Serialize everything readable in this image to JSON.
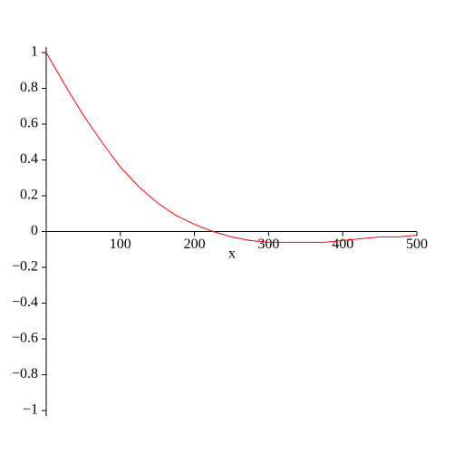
{
  "chart_data": {
    "type": "line",
    "x_label": "x",
    "x": [
      0,
      25,
      50,
      75,
      100,
      125,
      150,
      175,
      200,
      225,
      250,
      275,
      300,
      325,
      350,
      375,
      400,
      425,
      450,
      475,
      500
    ],
    "series": [
      {
        "color": "#ff0000",
        "values": [
          1,
          0.82,
          0.65,
          0.5,
          0.36,
          0.25,
          0.16,
          0.09,
          0.04,
          0,
          -0.03,
          -0.05,
          -0.06,
          -0.06,
          -0.06,
          -0.06,
          -0.05,
          -0.04,
          -0.03,
          -0.03,
          -0.02
        ]
      }
    ],
    "xlim": [
      0,
      500
    ],
    "xticks": [
      100,
      200,
      300,
      400,
      500
    ],
    "ylim": [
      -1,
      1
    ],
    "yticks": [
      {
        "value": -1,
        "label": "−1"
      },
      {
        "value": -0.8,
        "label": "−0.8"
      },
      {
        "value": -0.6,
        "label": "−0.6"
      },
      {
        "value": -0.4,
        "label": "−0.4"
      },
      {
        "value": -0.2,
        "label": "−0.2"
      },
      0,
      0.2,
      0.4,
      0.6,
      0.8,
      1
    ]
  }
}
